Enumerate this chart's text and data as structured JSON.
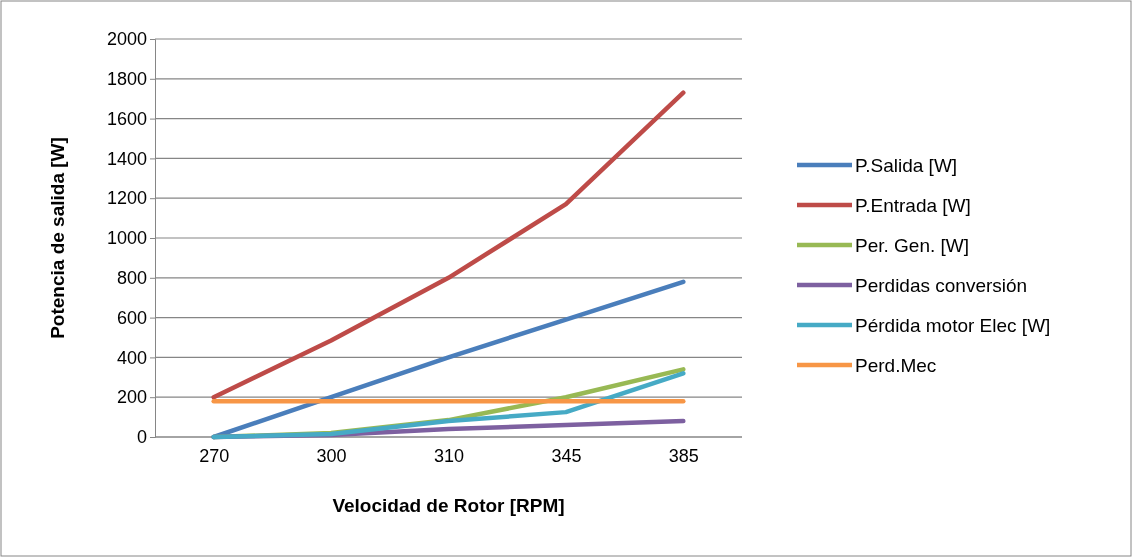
{
  "chart_data": {
    "type": "line",
    "xlabel": "Velocidad de Rotor [RPM]",
    "ylabel": "Potencia de salida [W]",
    "categories": [
      "270",
      "300",
      "310",
      "345",
      "385"
    ],
    "ylim": [
      0,
      2000
    ],
    "yticks": [
      0,
      200,
      400,
      600,
      800,
      1000,
      1200,
      1400,
      1600,
      1800,
      2000
    ],
    "grid": "y",
    "legend": "right",
    "marker": "none",
    "line_style": "solid",
    "series": [
      {
        "name": "P.Salida [W]",
        "color": "#4a7ebb",
        "values": [
          0,
          200,
          400,
          590,
          780
        ]
      },
      {
        "name": "P.Entrada [W]",
        "color": "#be4b48",
        "values": [
          200,
          485,
          800,
          1170,
          1730
        ]
      },
      {
        "name": "Per. Gen. [W]",
        "color": "#98b954",
        "values": [
          0,
          20,
          85,
          200,
          340
        ]
      },
      {
        "name": "Perdidas conversión",
        "color": "#7d60a0",
        "values": [
          0,
          10,
          40,
          60,
          80
        ]
      },
      {
        "name": "Pérdida motor Elec [W]",
        "color": "#46aac5",
        "values": [
          0,
          15,
          80,
          125,
          320
        ]
      },
      {
        "name": "Perd.Mec",
        "color": "#f79646",
        "values": [
          180,
          180,
          180,
          180,
          180
        ]
      }
    ]
  }
}
